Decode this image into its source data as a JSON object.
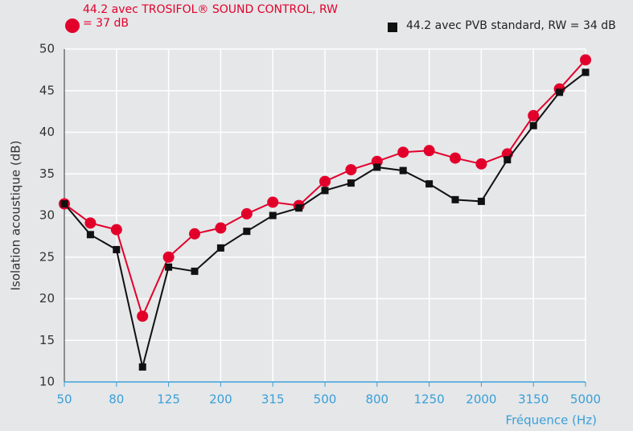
{
  "chart_data": {
    "type": "line",
    "y_label": "Isolation acoustique (dB)",
    "x_label": "Fréquence (Hz)",
    "categories": [
      "50",
      null,
      "80",
      null,
      "125",
      null,
      "200",
      null,
      "315",
      null,
      "500",
      null,
      "800",
      null,
      "1250",
      null,
      "2000",
      null,
      "3150",
      null,
      "5000"
    ],
    "series": [
      {
        "name": "44.2  avec TROSIFOL® SOUND CONTROL, RW = 37 dB",
        "color": "#e2002b",
        "marker": "circle",
        "values": [
          31.4,
          29.1,
          28.3,
          17.9,
          25.0,
          27.8,
          28.5,
          30.2,
          31.6,
          31.2,
          34.1,
          35.5,
          36.5,
          37.6,
          37.8,
          36.9,
          36.2,
          37.4,
          42.0,
          45.2,
          48.7
        ]
      },
      {
        "name": "44.2 avec PVB standard, RW = 34 dB",
        "color": "#111111",
        "marker": "square",
        "values": [
          31.4,
          27.7,
          25.9,
          11.8,
          23.8,
          23.3,
          26.1,
          28.1,
          30.0,
          30.9,
          33.0,
          33.9,
          35.8,
          35.4,
          33.8,
          31.9,
          31.7,
          36.7,
          40.8,
          44.8,
          47.2
        ]
      }
    ],
    "ylim": [
      10,
      50
    ],
    "yticks": [
      10,
      15,
      20,
      25,
      30,
      35,
      40,
      45,
      50
    ],
    "grid": true
  }
}
